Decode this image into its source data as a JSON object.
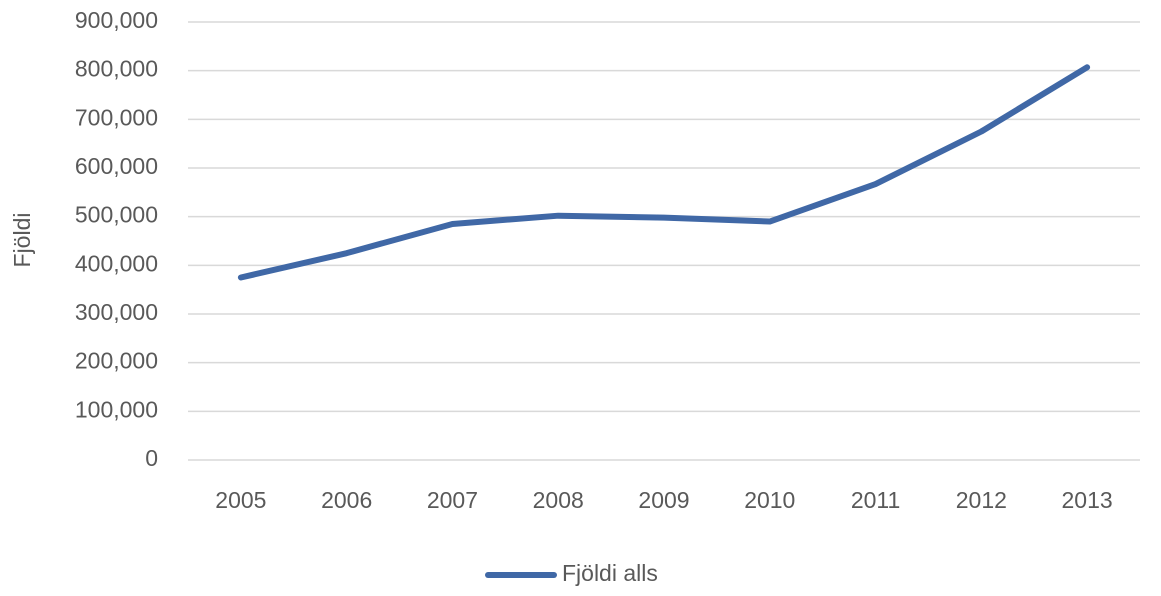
{
  "chart_data": {
    "type": "line",
    "ylabel": "Fjöldi",
    "categories": [
      "2005",
      "2006",
      "2007",
      "2008",
      "2009",
      "2010",
      "2011",
      "2012",
      "2013"
    ],
    "series": [
      {
        "name": "Fjöldi alls",
        "color": "#4068a6",
        "values": [
          375000,
          425000,
          485000,
          502000,
          498000,
          490000,
          567000,
          675000,
          807000
        ]
      }
    ],
    "ylim": [
      0,
      900000
    ],
    "yticks": [
      0,
      {
        "value": 100000,
        "label": "100,000"
      },
      {
        "value": 200000,
        "label": "200,000"
      },
      {
        "value": 300000,
        "label": "300,000"
      },
      {
        "value": 400000,
        "label": "400,000"
      },
      {
        "value": 500000,
        "label": "500,000"
      },
      {
        "value": 600000,
        "label": "600,000"
      },
      {
        "value": 700000,
        "label": "700,000"
      },
      {
        "value": 800000,
        "label": "800,000"
      },
      {
        "value": 900000,
        "label": "900,000"
      }
    ],
    "grid": true,
    "legend": "bottom"
  }
}
